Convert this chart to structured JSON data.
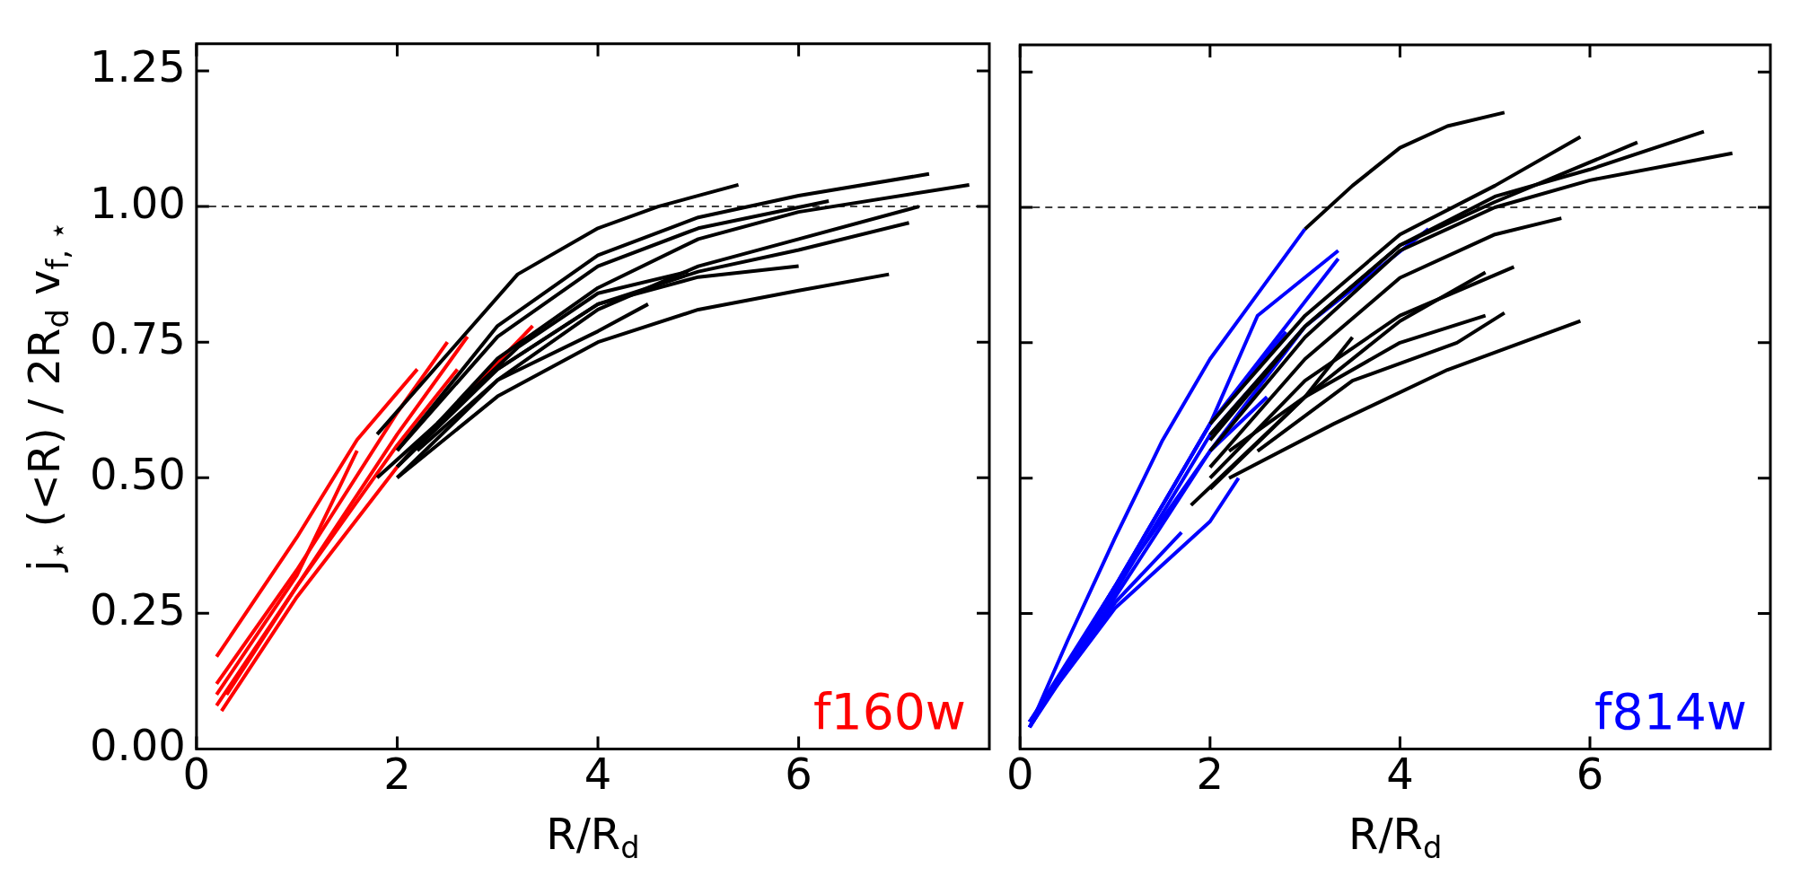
{
  "chart_data": [
    {
      "type": "line",
      "xlabel": "R/R$_{d}$",
      "ylabel": "j$_{⋆}$ (<R) / 2R$_{d}$ v$_{f, ⋆}$",
      "xlim": [
        0,
        7.9
      ],
      "ylim": [
        0,
        1.3
      ],
      "xticks": [
        0,
        2,
        4,
        6
      ],
      "yticks": [
        {
          "value": 0,
          "label": "0.00"
        },
        {
          "value": 0.25,
          "label": "0.25"
        },
        {
          "value": 0.5,
          "label": "0.50"
        },
        {
          "value": 0.75,
          "label": "0.75"
        },
        {
          "value": 1,
          "label": "1.00"
        },
        {
          "value": 1.25,
          "label": "1.25"
        }
      ],
      "grid": false,
      "legend": false,
      "line_style": "solid",
      "ref_lines": [
        {
          "axis": "y",
          "value": 1,
          "color": "#000000",
          "line_style": "dashed"
        }
      ],
      "annotations": [
        "f160w"
      ],
      "series": [
        {
          "color": "#000000",
          "x": [
            1.8,
            3.2,
            4,
            4.6,
            5.4
          ],
          "values": [
            0.58,
            0.875,
            0.96,
            1.0,
            1.04
          ]
        },
        {
          "color": "#000000",
          "x": [
            2,
            3,
            4,
            5,
            6,
            7.3
          ],
          "values": [
            0.55,
            0.78,
            0.91,
            0.98,
            1.02,
            1.06
          ]
        },
        {
          "color": "#000000",
          "x": [
            2,
            3,
            4,
            5,
            6,
            7.7
          ],
          "values": [
            0.52,
            0.72,
            0.85,
            0.94,
            0.99,
            1.04
          ]
        },
        {
          "color": "#000000",
          "x": [
            2,
            3,
            4,
            5,
            6,
            7.2
          ],
          "values": [
            0.5,
            0.68,
            0.81,
            0.89,
            0.94,
            1.0
          ]
        },
        {
          "color": "#000000",
          "x": [
            2,
            3,
            4,
            5,
            6,
            7.1
          ],
          "values": [
            0.52,
            0.7,
            0.82,
            0.88,
            0.92,
            0.97
          ]
        },
        {
          "color": "#000000",
          "x": [
            2,
            3,
            4,
            5,
            6,
            6.9
          ],
          "values": [
            0.5,
            0.65,
            0.75,
            0.81,
            0.845,
            0.875
          ]
        },
        {
          "color": "#000000",
          "x": [
            1.8,
            3,
            4,
            5,
            6
          ],
          "values": [
            0.5,
            0.7,
            0.82,
            0.87,
            0.89
          ]
        },
        {
          "color": "#000000",
          "x": [
            2,
            3,
            4,
            5,
            6.3
          ],
          "values": [
            0.55,
            0.76,
            0.89,
            0.96,
            1.01
          ]
        },
        {
          "color": "#000000",
          "x": [
            2.2,
            3,
            4,
            4.5
          ],
          "values": [
            0.55,
            0.68,
            0.77,
            0.82
          ]
        },
        {
          "color": "#000000",
          "x": [
            2.4,
            3.2,
            4,
            4.9
          ],
          "values": [
            0.6,
            0.74,
            0.84,
            0.88
          ]
        },
        {
          "color": "#ff0000",
          "x": [
            0.2,
            1,
            1.6,
            2.2
          ],
          "values": [
            0.17,
            0.39,
            0.57,
            0.7
          ]
        },
        {
          "color": "#ff0000",
          "x": [
            0.2,
            1,
            2,
            2.5
          ],
          "values": [
            0.12,
            0.33,
            0.62,
            0.75
          ]
        },
        {
          "color": "#ff0000",
          "x": [
            0.2,
            1,
            2,
            2.7
          ],
          "values": [
            0.08,
            0.3,
            0.58,
            0.76
          ]
        },
        {
          "color": "#ff0000",
          "x": [
            0.25,
            1,
            2,
            3.35
          ],
          "values": [
            0.07,
            0.28,
            0.52,
            0.78
          ]
        },
        {
          "color": "#ff0000",
          "x": [
            0.2,
            1,
            1.6
          ],
          "values": [
            0.1,
            0.32,
            0.55
          ]
        },
        {
          "color": "#ff0000",
          "x": [
            0.3,
            1,
            2,
            2.6
          ],
          "values": [
            0.1,
            0.3,
            0.56,
            0.7
          ]
        }
      ]
    },
    {
      "type": "line",
      "xlabel": "R/R$_{d}$",
      "xlim": [
        0,
        7.9
      ],
      "ylim": [
        0,
        1.3
      ],
      "xticks": [
        0,
        2,
        4,
        6
      ],
      "yticks": [
        0,
        0.25,
        0.5,
        0.75,
        1,
        1.25
      ],
      "tick_labels": "x",
      "grid": false,
      "legend": false,
      "line_style": "solid",
      "ref_lines": [
        {
          "axis": "y",
          "value": 1,
          "color": "#000000",
          "line_style": "dashed"
        }
      ],
      "annotations": [
        "f814w"
      ],
      "series": [
        {
          "color": "#000000",
          "x": [
            3,
            3.5,
            4,
            4.5,
            5.1
          ],
          "values": [
            0.96,
            1.04,
            1.11,
            1.15,
            1.175
          ]
        },
        {
          "color": "#000000",
          "x": [
            2,
            3,
            4,
            5,
            5.9
          ],
          "values": [
            0.6,
            0.8,
            0.95,
            1.04,
            1.13
          ]
        },
        {
          "color": "#000000",
          "x": [
            2,
            3,
            4,
            5,
            6.5
          ],
          "values": [
            0.58,
            0.78,
            0.93,
            1.01,
            1.12
          ]
        },
        {
          "color": "#000000",
          "x": [
            2,
            3,
            4,
            5,
            6,
            7.5
          ],
          "values": [
            0.55,
            0.76,
            0.92,
            1.0,
            1.05,
            1.1
          ]
        },
        {
          "color": "#000000",
          "x": [
            2,
            3,
            4,
            5,
            6,
            7.2
          ],
          "values": [
            0.57,
            0.78,
            0.93,
            1.02,
            1.07,
            1.14
          ]
        },
        {
          "color": "#000000",
          "x": [
            2,
            3,
            4,
            5,
            5.7
          ],
          "values": [
            0.52,
            0.72,
            0.87,
            0.95,
            0.98
          ]
        },
        {
          "color": "#000000",
          "x": [
            2,
            3,
            4,
            5.2
          ],
          "values": [
            0.5,
            0.68,
            0.8,
            0.89
          ]
        },
        {
          "color": "#000000",
          "x": [
            2,
            3,
            4,
            4.9
          ],
          "values": [
            0.48,
            0.65,
            0.75,
            0.8
          ]
        },
        {
          "color": "#000000",
          "x": [
            2.2,
            3.3,
            4.5,
            5.9
          ],
          "values": [
            0.5,
            0.6,
            0.7,
            0.79
          ]
        },
        {
          "color": "#000000",
          "x": [
            2.5,
            3.5,
            4.6,
            5.1
          ],
          "values": [
            0.55,
            0.68,
            0.75,
            0.805
          ]
        },
        {
          "color": "#000000",
          "x": [
            1.8,
            3,
            4,
            4.9
          ],
          "values": [
            0.45,
            0.65,
            0.79,
            0.88
          ]
        },
        {
          "color": "#000000",
          "x": [
            2.2,
            3,
            3.5
          ],
          "values": [
            0.55,
            0.65,
            0.76
          ]
        },
        {
          "color": "#0000ff",
          "x": [
            0.1,
            0.5,
            1,
            1.5,
            2,
            2.5,
            3
          ],
          "values": [
            0.04,
            0.2,
            0.39,
            0.57,
            0.72,
            0.84,
            0.96
          ]
        },
        {
          "color": "#0000ff",
          "x": [
            0.1,
            1,
            2,
            2.5,
            3.35
          ],
          "values": [
            0.05,
            0.3,
            0.6,
            0.8,
            0.92
          ]
        },
        {
          "color": "#0000ff",
          "x": [
            0.1,
            1,
            2,
            3,
            4.3
          ],
          "values": [
            0.04,
            0.28,
            0.55,
            0.78,
            0.96
          ]
        },
        {
          "color": "#0000ff",
          "x": [
            0.1,
            1,
            1.7
          ],
          "values": [
            0.05,
            0.27,
            0.4
          ]
        },
        {
          "color": "#0000ff",
          "x": [
            0.1,
            1,
            2,
            2.3
          ],
          "values": [
            0.05,
            0.26,
            0.42,
            0.5
          ]
        },
        {
          "color": "#0000ff",
          "x": [
            0.1,
            1,
            2,
            2.6
          ],
          "values": [
            0.04,
            0.3,
            0.55,
            0.65
          ]
        },
        {
          "color": "#0000ff",
          "x": [
            0.1,
            1,
            2,
            3
          ],
          "values": [
            0.05,
            0.29,
            0.58,
            0.78
          ]
        },
        {
          "color": "#0000ff",
          "x": [
            0.1,
            1,
            2,
            2.8
          ],
          "values": [
            0.04,
            0.3,
            0.6,
            0.77
          ]
        },
        {
          "color": "#0000ff",
          "x": [
            0.1,
            1,
            2,
            3.35
          ],
          "values": [
            0.04,
            0.3,
            0.6,
            0.905
          ]
        }
      ]
    }
  ]
}
